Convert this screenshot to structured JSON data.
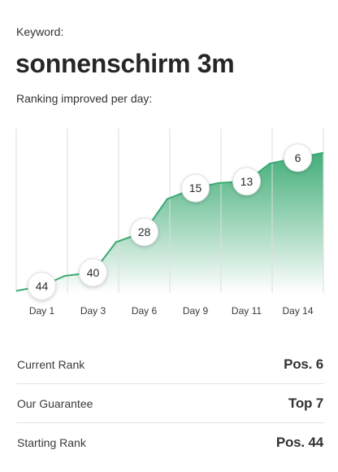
{
  "keyword_label": "Keyword:",
  "keyword": "sonnenschirm 3m",
  "chart_caption": "Ranking improved per day:",
  "colors": {
    "accent": "#3aaa72",
    "fill_top": "#3aaa72",
    "fill_bottom": "#ffffff",
    "gridline": "#dedede",
    "badge_border": "#e0e0e0"
  },
  "chart_data": {
    "type": "area",
    "title": "",
    "xlabel": "",
    "ylabel": "",
    "categories": [
      "Day 1",
      "Day 3",
      "Day 6",
      "Day 9",
      "Day 11",
      "Day 14"
    ],
    "series": [
      {
        "values": [
          44,
          40,
          28,
          15,
          13,
          6
        ]
      }
    ],
    "y_inverted": true,
    "grid": true,
    "legend": "none"
  },
  "stats": [
    {
      "label": "Current Rank",
      "value": "Pos. 6"
    },
    {
      "label": "Our Guarantee",
      "value": "Top 7"
    },
    {
      "label": "Starting Rank",
      "value": "Pos. 44"
    }
  ]
}
